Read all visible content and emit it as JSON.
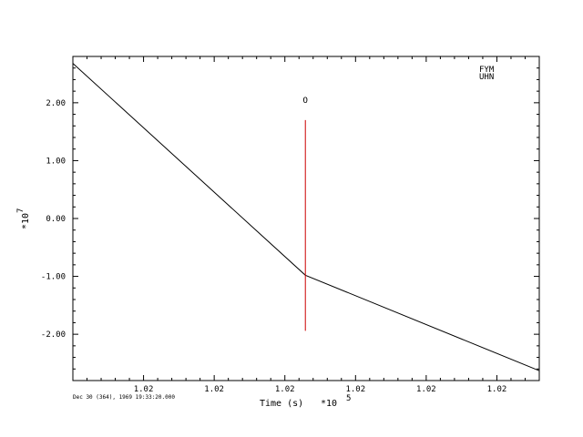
{
  "chart_data": {
    "type": "line",
    "title": "",
    "xlabel": "Time (s)",
    "x_multiplier": "*10",
    "x_multiplier_exp": "5",
    "ylabel_multiplier": "*10",
    "ylabel_multiplier_exp": "7",
    "timestamp": "Dec 30 (364), 1969 19:33:20.000",
    "station": "FYM",
    "channel": "UHN",
    "grid": false,
    "xlim": [
      0,
      6.6
    ],
    "ylim": [
      -2.8,
      2.8
    ],
    "x_ticks": [
      {
        "x": 1,
        "label": "1.02"
      },
      {
        "x": 2,
        "label": "1.02"
      },
      {
        "x": 3,
        "label": "1.02"
      },
      {
        "x": 4,
        "label": "1.02"
      },
      {
        "x": 5,
        "label": "1.02"
      },
      {
        "x": 6,
        "label": "1.02"
      }
    ],
    "y_ticks": [
      {
        "y": 2,
        "label": "2.00"
      },
      {
        "y": 1,
        "label": "1.00"
      },
      {
        "y": 0,
        "label": "0.00"
      },
      {
        "y": -1,
        "label": "-1.00"
      },
      {
        "y": -2,
        "label": "-2.00"
      }
    ],
    "series": [
      {
        "color": "#000000",
        "points": [
          [
            0,
            2.68
          ],
          [
            3.29,
            -0.98
          ],
          [
            6.6,
            -2.63
          ]
        ]
      }
    ],
    "markers": [
      {
        "x": 3.29,
        "y_from": -1.94,
        "y_to": 1.7,
        "label": "O",
        "label_y": 2.0,
        "color": "#cc0000"
      }
    ]
  }
}
